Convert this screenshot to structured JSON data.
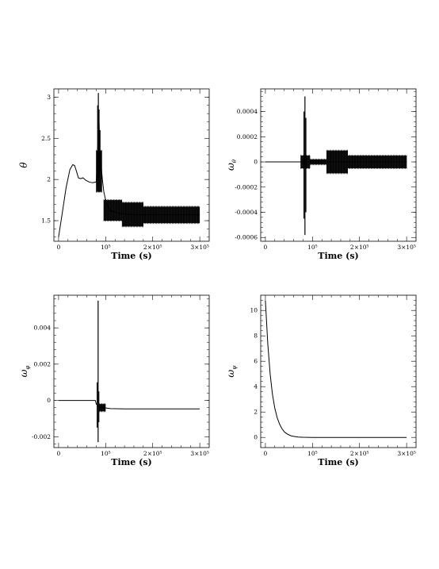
{
  "chart_data": [
    {
      "type": "line",
      "id": "theta",
      "title": "",
      "xlabel": "Time (s)",
      "ylabel": "θ",
      "ylabel_sub": "",
      "xlim": [
        -10000,
        320000
      ],
      "ylim": [
        1.25,
        3.1
      ],
      "xticks": [
        {
          "v": 0,
          "label": "0"
        },
        {
          "v": 100000,
          "label": "10⁵"
        },
        {
          "v": 200000,
          "label": "2×10⁵"
        },
        {
          "v": 300000,
          "label": "3×10⁵"
        }
      ],
      "yticks": [
        {
          "v": 1.5,
          "label": "1.5"
        },
        {
          "v": 2,
          "label": "2"
        },
        {
          "v": 2.5,
          "label": "2.5"
        },
        {
          "v": 3,
          "label": "3"
        }
      ],
      "series": [
        {
          "x": [
            0,
            8000,
            16000,
            24000,
            30000,
            34000,
            38000,
            42000,
            46000,
            52000,
            58000,
            65000,
            72000,
            80000,
            82000,
            84000,
            86000,
            88000,
            90000,
            93000,
            96000,
            100000,
            104000,
            110000,
            120000,
            140000,
            170000,
            210000,
            250000,
            290000,
            300000
          ],
          "y": [
            1.3,
            1.6,
            1.9,
            2.12,
            2.18,
            2.17,
            2.1,
            2.02,
            2.01,
            2.02,
            1.99,
            1.97,
            1.96,
            1.97,
            2.2,
            2.55,
            2.7,
            2.3,
            2.2,
            2.0,
            1.85,
            1.75,
            1.68,
            1.62,
            1.6,
            1.58,
            1.57,
            1.57,
            1.57,
            1.57,
            1.57
          ]
        }
      ],
      "spikes": [
        {
          "x": 83000,
          "y0": 1.9,
          "y1": 2.9
        },
        {
          "x": 84500,
          "y0": 1.95,
          "y1": 3.05
        },
        {
          "x": 86000,
          "y0": 2.0,
          "y1": 2.85
        },
        {
          "x": 88000,
          "y0": 2.1,
          "y1": 2.6
        }
      ],
      "bands": [
        {
          "x0": 80000,
          "x1": 92000,
          "ymin": 1.85,
          "ymax": 2.35
        },
        {
          "x0": 96000,
          "x1": 135000,
          "ymin": 1.5,
          "ymax": 1.75
        },
        {
          "x0": 135000,
          "x1": 180000,
          "ymin": 1.43,
          "ymax": 1.72
        },
        {
          "x0": 180000,
          "x1": 300000,
          "ymin": 1.47,
          "ymax": 1.67
        }
      ]
    },
    {
      "type": "line",
      "id": "omega-theta",
      "title": "",
      "xlabel": "Time (s)",
      "ylabel": "ω",
      "ylabel_sub": "θ",
      "xlim": [
        -10000,
        320000
      ],
      "ylim": [
        -0.00063,
        0.00058
      ],
      "xticks": [
        {
          "v": 0,
          "label": "0"
        },
        {
          "v": 100000,
          "label": "10⁵"
        },
        {
          "v": 200000,
          "label": "2×10⁵"
        },
        {
          "v": 300000,
          "label": "3×10⁵"
        }
      ],
      "yticks": [
        {
          "v": -0.0006,
          "label": "-0.0006"
        },
        {
          "v": -0.0004,
          "label": "-0.0004"
        },
        {
          "v": -0.0002,
          "label": "-0.0002"
        },
        {
          "v": 0,
          "label": "0"
        },
        {
          "v": 0.0002,
          "label": "0.0002"
        },
        {
          "v": 0.0004,
          "label": "0.0004"
        }
      ],
      "series": [
        {
          "x": [
            0,
            300000
          ],
          "y": [
            0,
            0
          ]
        }
      ],
      "spikes": [
        {
          "x": 82000,
          "y0": -0.00045,
          "y1": 0.0004
        },
        {
          "x": 84000,
          "y0": -0.00058,
          "y1": 0.00052
        },
        {
          "x": 86000,
          "y0": -0.0004,
          "y1": 0.00035
        }
      ],
      "bands": [
        {
          "x0": 75000,
          "x1": 95000,
          "ymin": -5e-05,
          "ymax": 5e-05
        },
        {
          "x0": 95000,
          "x1": 130000,
          "ymin": -2e-05,
          "ymax": 2e-05
        },
        {
          "x0": 130000,
          "x1": 175000,
          "ymin": -9e-05,
          "ymax": 9e-05
        },
        {
          "x0": 175000,
          "x1": 300000,
          "ymin": -5e-05,
          "ymax": 5e-05
        }
      ]
    },
    {
      "type": "line",
      "id": "omega-phi",
      "title": "",
      "xlabel": "Time (s)",
      "ylabel": "ω",
      "ylabel_sub": "φ",
      "xlim": [
        -10000,
        320000
      ],
      "ylim": [
        -0.0026,
        0.0058
      ],
      "xticks": [
        {
          "v": 0,
          "label": "0"
        },
        {
          "v": 100000,
          "label": "10⁵"
        },
        {
          "v": 200000,
          "label": "2×10⁵"
        },
        {
          "v": 300000,
          "label": "3×10⁵"
        }
      ],
      "yticks": [
        {
          "v": -0.002,
          "label": "-0.002"
        },
        {
          "v": 0,
          "label": "0"
        },
        {
          "v": 0.002,
          "label": "0.002"
        },
        {
          "v": 0.004,
          "label": "0.004"
        }
      ],
      "series": [
        {
          "x": [
            0,
            78000,
            80000,
            84000,
            88000,
            95000,
            110000,
            140000,
            200000,
            300000
          ],
          "y": [
            0,
            0,
            -0.0002,
            -0.0003,
            -0.00035,
            -0.0004,
            -0.00045,
            -0.00047,
            -0.00047,
            -0.00047
          ]
        }
      ],
      "spikes": [
        {
          "x": 82000,
          "y0": -0.0015,
          "y1": 0.001
        },
        {
          "x": 84000,
          "y0": -0.0023,
          "y1": 0.0055
        },
        {
          "x": 85500,
          "y0": -0.0012,
          "y1": 0.0005
        }
      ],
      "bands": [
        {
          "x0": 85000,
          "x1": 100000,
          "ymin": -0.0006,
          "ymax": -0.0002
        }
      ]
    },
    {
      "type": "line",
      "id": "omega-psi",
      "title": "",
      "xlabel": "Time (s)",
      "ylabel": "ω",
      "ylabel_sub": "ψ",
      "xlim": [
        -10000,
        320000
      ],
      "ylim": [
        -0.8,
        11.2
      ],
      "xticks": [
        {
          "v": 0,
          "label": "0"
        },
        {
          "v": 100000,
          "label": "10⁵"
        },
        {
          "v": 200000,
          "label": "2×10⁵"
        },
        {
          "v": 300000,
          "label": "3×10⁵"
        }
      ],
      "yticks": [
        {
          "v": 0,
          "label": "0"
        },
        {
          "v": 2,
          "label": "2"
        },
        {
          "v": 4,
          "label": "4"
        },
        {
          "v": 6,
          "label": "6"
        },
        {
          "v": 8,
          "label": "8"
        },
        {
          "v": 10,
          "label": "10"
        }
      ],
      "series": [
        {
          "x": [
            0,
            5000,
            10000,
            15000,
            20000,
            25000,
            30000,
            35000,
            40000,
            45000,
            50000,
            55000,
            60000,
            70000,
            80000,
            100000,
            150000,
            200000,
            250000,
            300000
          ],
          "y": [
            10.8,
            7.4,
            5.0,
            3.4,
            2.3,
            1.55,
            1.05,
            0.7,
            0.45,
            0.3,
            0.2,
            0.12,
            0.08,
            0.03,
            0.01,
            0,
            0,
            0,
            0,
            0
          ]
        }
      ],
      "spikes": [],
      "bands": []
    }
  ]
}
